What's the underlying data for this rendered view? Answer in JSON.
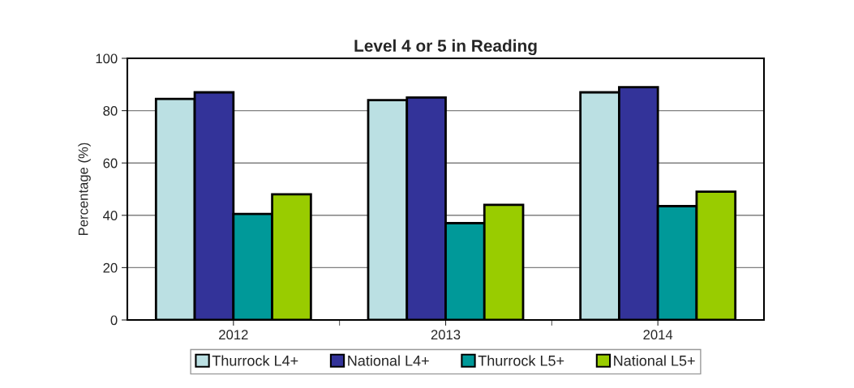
{
  "chart_data": {
    "type": "bar",
    "title": "Level 4 or 5 in Reading",
    "ylabel": "Percentage (%)",
    "categories": [
      "2012",
      "2013",
      "2014"
    ],
    "series": [
      {
        "name": "Thurrock L4+",
        "color": "#bbe0e3",
        "values": [
          84.5,
          84,
          87
        ]
      },
      {
        "name": "National L4+",
        "color": "#333399",
        "values": [
          87,
          85,
          89
        ]
      },
      {
        "name": "Thurrock L5+",
        "color": "#009999",
        "values": [
          40.5,
          37,
          43.5
        ]
      },
      {
        "name": "National L5+",
        "color": "#99cc00",
        "values": [
          48,
          44,
          49
        ]
      }
    ],
    "ylim": [
      0,
      100
    ],
    "yticks": [
      0,
      20,
      40,
      60,
      80,
      100
    ],
    "grid": "y",
    "legend": "bottom"
  }
}
